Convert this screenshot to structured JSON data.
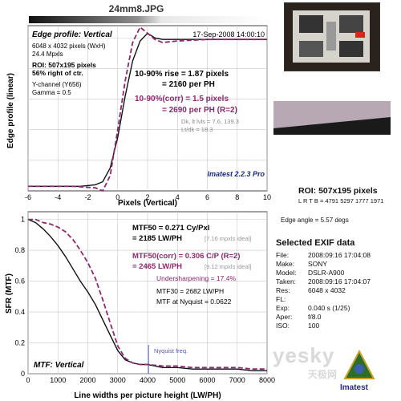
{
  "file_title": "24mm8.JPG",
  "top_panel": {
    "heading": "Edge profile: Vertical",
    "date": "17-Sep-2008 14:00:10",
    "size_lines": [
      "6048 x 4032 pixels (WxH)",
      "24.4 Mpxls"
    ],
    "roi_lines": [
      "ROI: 507x195 pixels",
      "56% right of ctr."
    ],
    "channel_lines": [
      "Y-channel (Y656)",
      "Gamma = 0.5"
    ],
    "rise_lines": [
      "10-90% rise = 1.87 pixels",
      "= 2160 per PH"
    ],
    "corr_lines": [
      "10-90%(corr) = 1.5 pixels",
      "= 2690 per PH  (R=2)"
    ],
    "dk_lines": [
      "Dk, lt lvls = 7.6, 139.3",
      "Lt/dk = 18.3"
    ],
    "version": "Imatest 2.2.3 Pro"
  },
  "bottom_panel": {
    "mtf50_lines": [
      "MTF50 = 0.271 Cy/Pxl",
      "= 2185 LW/PH"
    ],
    "mtf50_ideal": "[7.16 mpxls ideal]",
    "mtf50c_lines": [
      "MTF50(corr) = 0.306 C/P  (R=2)",
      "= 2465 LW/PH"
    ],
    "mtf50c_ideal": "[9.12 mpxls ideal]",
    "undersharp": "Undersharpening = 17.4%",
    "mtf30": "MTF30 = 2682 LW/PH",
    "nyq_mtf": "MTF at Nyquist = 0.0622",
    "nyquist_label": "Nyquist freq.",
    "mtf_label": "MTF: Vertical"
  },
  "right_panel": {
    "roi_title": "ROI: 507x195 pixels",
    "roi_coords": "L R T B = 4791 5297  1777 1971",
    "edge_angle": "Edge angle = 5.57 degs",
    "exif_title": "Selected EXIF data",
    "exif": [
      {
        "k": "File:",
        "v": "2008:09:16 17:04:08"
      },
      {
        "k": "Make:",
        "v": "SONY"
      },
      {
        "k": "Model:",
        "v": "DSLR-A900"
      },
      {
        "k": "Taken:",
        "v": "2008:09:16 17:04:07"
      },
      {
        "k": "Res:",
        "v": "6048 x 4032"
      },
      {
        "k": "FL:",
        "v": ""
      },
      {
        "k": "Exp:",
        "v": "0.040 s  (1/25)"
      },
      {
        "k": "Aper:",
        "v": "f/8.0"
      },
      {
        "k": "ISO:",
        "v": "100"
      }
    ],
    "watermark": "yesky",
    "watermark_sub": "天极网",
    "logo": "Imatest"
  },
  "colors": {
    "uncorrected": "#111111",
    "corrected": "#8a2a6e",
    "nyquist": "#7070c0"
  },
  "chart_data": [
    {
      "type": "line",
      "title": "",
      "xlabel": "Pixels (Vertical)",
      "ylabel": "Edge profile (linear)",
      "xlim": [
        -6,
        10
      ],
      "ylim": [
        0,
        1.08
      ],
      "xticks": [
        -6,
        -4,
        -2,
        0,
        2,
        4,
        6,
        8,
        10
      ],
      "yticks": [],
      "grid": true,
      "series": [
        {
          "values": [
            [
              -6,
              0.03
            ],
            [
              -4,
              0.03
            ],
            [
              -2.5,
              0.03
            ],
            [
              -1.5,
              0.04
            ],
            [
              -1,
              0.06
            ],
            [
              -0.5,
              0.15
            ],
            [
              0,
              0.35
            ],
            [
              0.5,
              0.62
            ],
            [
              1,
              0.85
            ],
            [
              1.5,
              0.98
            ],
            [
              2,
              1.03
            ],
            [
              2.5,
              1.0
            ],
            [
              3,
              0.99
            ],
            [
              4,
              0.99
            ],
            [
              6,
              0.99
            ],
            [
              8,
              0.99
            ],
            [
              10,
              0.99
            ]
          ]
        },
        {
          "values": [
            [
              -6,
              0.03
            ],
            [
              -3,
              0.03
            ],
            [
              -1.5,
              0.02
            ],
            [
              -1,
              0.0
            ],
            [
              -0.5,
              0.1
            ],
            [
              0,
              0.4
            ],
            [
              0.5,
              0.72
            ],
            [
              1,
              0.97
            ],
            [
              1.5,
              1.07
            ],
            [
              2,
              1.03
            ],
            [
              2.5,
              0.99
            ],
            [
              3,
              0.97
            ],
            [
              4,
              0.98
            ],
            [
              6,
              0.99
            ],
            [
              8,
              0.99
            ],
            [
              10,
              0.99
            ]
          ]
        }
      ]
    },
    {
      "type": "line",
      "title": "",
      "xlabel": "Line widths per picture height (LW/PH)",
      "ylabel": "SFR (MTF)",
      "xlim": [
        0,
        8000
      ],
      "ylim": [
        0,
        1.05
      ],
      "xticks": [
        0,
        1000,
        2000,
        3000,
        4000,
        5000,
        6000,
        7000,
        8000
      ],
      "yticks": [
        0,
        0.2,
        0.4,
        0.6,
        0.8,
        1
      ],
      "grid": true,
      "nyquist_x": 4032,
      "series": [
        {
          "values": [
            [
              0,
              1
            ],
            [
              250,
              0.98
            ],
            [
              500,
              0.94
            ],
            [
              750,
              0.89
            ],
            [
              1000,
              0.83
            ],
            [
              1250,
              0.76
            ],
            [
              1500,
              0.68
            ],
            [
              1750,
              0.6
            ],
            [
              2000,
              0.53
            ],
            [
              2250,
              0.45
            ],
            [
              2500,
              0.35
            ],
            [
              2750,
              0.25
            ],
            [
              3000,
              0.15
            ],
            [
              3250,
              0.09
            ],
            [
              3500,
              0.07
            ],
            [
              3750,
              0.06
            ],
            [
              4000,
              0.06
            ],
            [
              4500,
              0.04
            ],
            [
              5000,
              0.04
            ],
            [
              5500,
              0.03
            ],
            [
              6000,
              0.03
            ],
            [
              6500,
              0.03
            ],
            [
              7000,
              0.03
            ],
            [
              7500,
              0.02
            ],
            [
              8000,
              0.02
            ]
          ]
        },
        {
          "values": [
            [
              0,
              1
            ],
            [
              250,
              1.0
            ],
            [
              500,
              0.98
            ],
            [
              750,
              0.97
            ],
            [
              1000,
              0.95
            ],
            [
              1250,
              0.92
            ],
            [
              1500,
              0.87
            ],
            [
              1750,
              0.8
            ],
            [
              2000,
              0.72
            ],
            [
              2250,
              0.62
            ],
            [
              2500,
              0.48
            ],
            [
              2750,
              0.33
            ],
            [
              3000,
              0.18
            ],
            [
              3250,
              0.1
            ],
            [
              3500,
              0.07
            ],
            [
              3750,
              0.06
            ],
            [
              4000,
              0.06
            ],
            [
              4500,
              0.05
            ],
            [
              5000,
              0.05
            ],
            [
              5500,
              0.04
            ],
            [
              6000,
              0.04
            ],
            [
              6500,
              0.04
            ],
            [
              7000,
              0.04
            ],
            [
              7500,
              0.03
            ],
            [
              8000,
              0.03
            ]
          ]
        }
      ]
    }
  ]
}
